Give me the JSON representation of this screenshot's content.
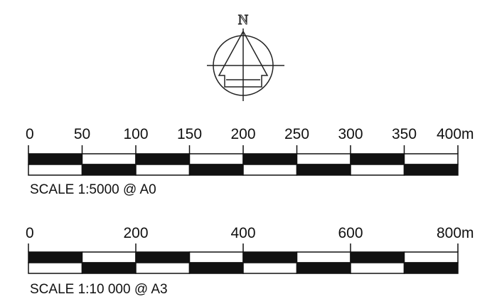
{
  "north_arrow": {
    "letter": "N"
  },
  "scale_bars": [
    {
      "ticks": [
        "0",
        "50",
        "100",
        "150",
        "200",
        "250",
        "300",
        "350",
        "400m"
      ],
      "segments": 8,
      "caption": "SCALE 1:5000 @ A0"
    },
    {
      "ticks": [
        "0",
        "200",
        "400",
        "600",
        "800m"
      ],
      "segments": 8,
      "caption": "SCALE 1:10 000 @ A3"
    }
  ],
  "colors": {
    "ink": "#111111",
    "paper": "#ffffff"
  }
}
